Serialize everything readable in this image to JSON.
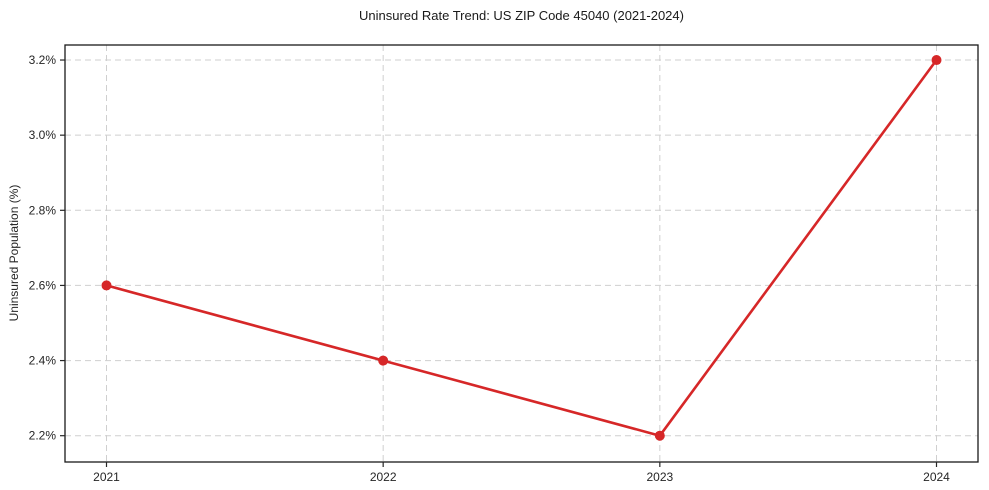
{
  "figure": {
    "title": "Uninsured Rate Trend: US ZIP Code 45040 (2021-2024)",
    "ylabel": "Uninsured Population (%)"
  },
  "chart_data": {
    "type": "line",
    "title": "Uninsured Rate Trend: US ZIP Code 45040 (2021-2024)",
    "xlabel": "",
    "ylabel": "Uninsured Population (%)",
    "x": [
      2021,
      2022,
      2023,
      2024
    ],
    "values": [
      2.6,
      2.4,
      2.2,
      3.2
    ],
    "xticks": {
      "values": [
        2021,
        2022,
        2023,
        2024
      ],
      "labels": [
        "2021",
        "2022",
        "2023",
        "2024"
      ]
    },
    "yticks": {
      "values": [
        2.2,
        2.4,
        2.6,
        2.8,
        3.0,
        3.2
      ],
      "labels": [
        "2.2%",
        "2.4%",
        "2.6%",
        "2.8%",
        "3.0%",
        "3.2%"
      ]
    },
    "xlim": [
      2020.85,
      2024.15
    ],
    "ylim": [
      2.13,
      3.24
    ],
    "grid": true,
    "legend": false,
    "line_color": "#d62728",
    "marker": "circle",
    "grid_color": "#cfcfcf",
    "spine_color": "#1a1a1a",
    "tick_color": "#262626"
  }
}
